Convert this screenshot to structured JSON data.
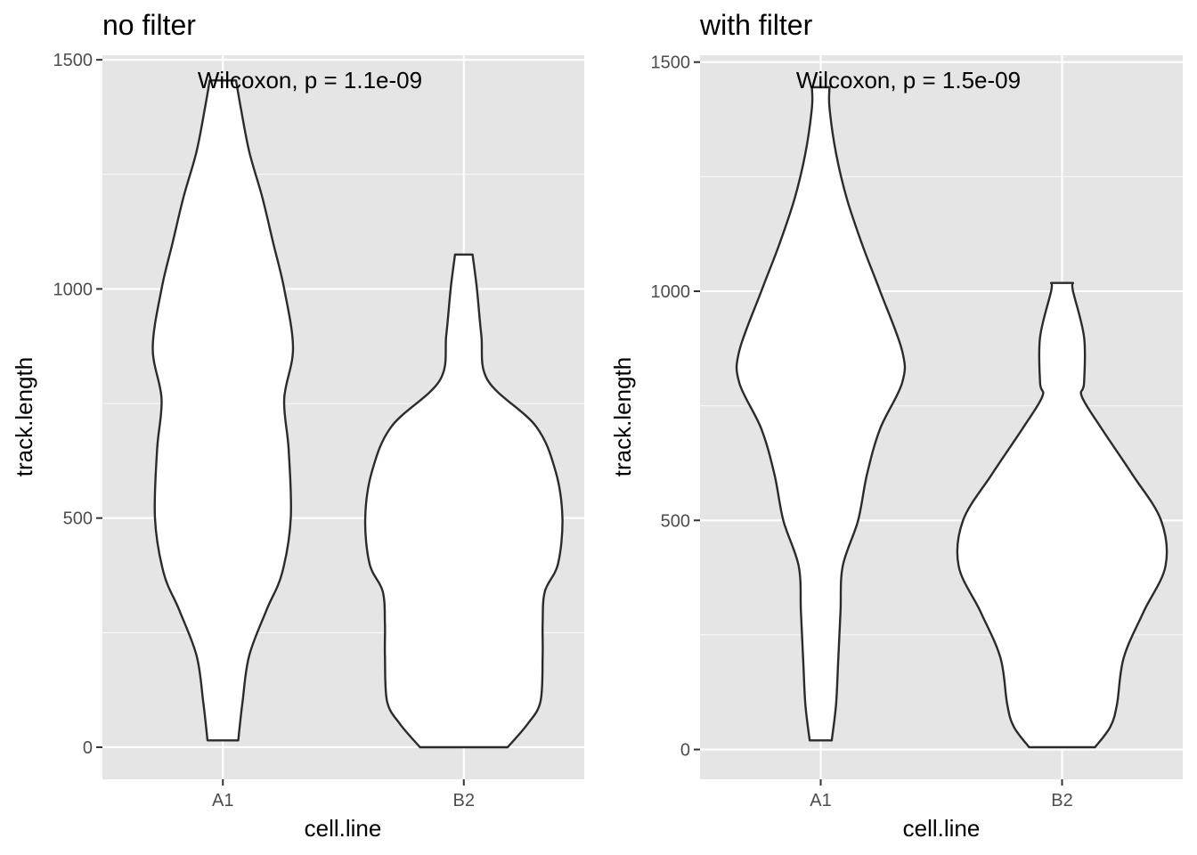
{
  "chart_data": [
    {
      "type": "violin",
      "title": "no filter",
      "xlabel": "cell.line",
      "ylabel": "track.length",
      "categories": [
        "A1",
        "B2"
      ],
      "ylim": [
        -70,
        1510
      ],
      "yticks": [
        0,
        500,
        1000,
        1500
      ],
      "annotation": "Wilcoxon, p = 1.1e-09",
      "grid": true,
      "violins": [
        {
          "category": "A1",
          "profile": [
            [
              15,
              0.07
            ],
            [
              100,
              0.09
            ],
            [
              200,
              0.12
            ],
            [
              300,
              0.2
            ],
            [
              380,
              0.27
            ],
            [
              500,
              0.31
            ],
            [
              650,
              0.3
            ],
            [
              760,
              0.28
            ],
            [
              870,
              0.32
            ],
            [
              1000,
              0.28
            ],
            [
              1100,
              0.23
            ],
            [
              1200,
              0.18
            ],
            [
              1300,
              0.12
            ],
            [
              1400,
              0.08
            ],
            [
              1455,
              0.06
            ]
          ]
        },
        {
          "category": "B2",
          "profile": [
            [
              0,
              0.2
            ],
            [
              50,
              0.29
            ],
            [
              100,
              0.35
            ],
            [
              200,
              0.36
            ],
            [
              270,
              0.36
            ],
            [
              340,
              0.37
            ],
            [
              400,
              0.43
            ],
            [
              500,
              0.45
            ],
            [
              600,
              0.42
            ],
            [
              700,
              0.33
            ],
            [
              800,
              0.11
            ],
            [
              900,
              0.08
            ],
            [
              1000,
              0.06
            ],
            [
              1075,
              0.04
            ]
          ]
        }
      ]
    },
    {
      "type": "violin",
      "title": "with filter",
      "xlabel": "cell.line",
      "ylabel": "track.length",
      "categories": [
        "A1",
        "B2"
      ],
      "ylim": [
        -65,
        1515
      ],
      "yticks": [
        0,
        500,
        1000,
        1500
      ],
      "annotation": "Wilcoxon, p = 1.5e-09",
      "grid": true,
      "violins": [
        {
          "category": "A1",
          "profile": [
            [
              20,
              0.05
            ],
            [
              100,
              0.07
            ],
            [
              200,
              0.08
            ],
            [
              300,
              0.09
            ],
            [
              400,
              0.1
            ],
            [
              500,
              0.17
            ],
            [
              600,
              0.21
            ],
            [
              700,
              0.27
            ],
            [
              800,
              0.37
            ],
            [
              870,
              0.37
            ],
            [
              1000,
              0.27
            ],
            [
              1100,
              0.19
            ],
            [
              1200,
              0.12
            ],
            [
              1300,
              0.07
            ],
            [
              1400,
              0.04
            ],
            [
              1445,
              0.04
            ]
          ]
        },
        {
          "category": "B2",
          "profile": [
            [
              5,
              0.15
            ],
            [
              50,
              0.22
            ],
            [
              100,
              0.25
            ],
            [
              200,
              0.28
            ],
            [
              300,
              0.37
            ],
            [
              400,
              0.47
            ],
            [
              500,
              0.45
            ],
            [
              600,
              0.32
            ],
            [
              700,
              0.18
            ],
            [
              770,
              0.09
            ],
            [
              800,
              0.1
            ],
            [
              900,
              0.1
            ],
            [
              1000,
              0.05
            ],
            [
              1018,
              0.05
            ]
          ]
        }
      ]
    }
  ]
}
